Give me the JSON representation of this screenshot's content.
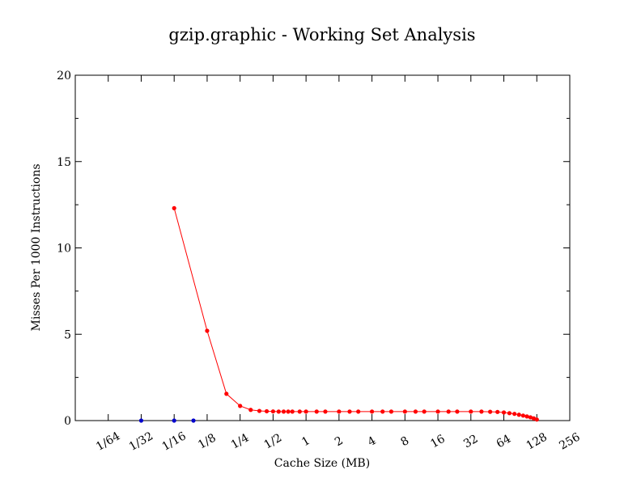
{
  "chart_data": {
    "type": "line",
    "title": "gzip.graphic - Working Set Analysis",
    "xlabel": "Cache Size (MB)",
    "ylabel": "Misses Per 1000 Instructions",
    "x_scale": "log2",
    "xlim": [
      0.0078125,
      256
    ],
    "ylim": [
      0,
      20
    ],
    "x_ticks": [
      {
        "value": 0.015625,
        "label": "1/64"
      },
      {
        "value": 0.03125,
        "label": "1/32"
      },
      {
        "value": 0.0625,
        "label": "1/16"
      },
      {
        "value": 0.125,
        "label": "1/8"
      },
      {
        "value": 0.25,
        "label": "1/4"
      },
      {
        "value": 0.5,
        "label": "1/2"
      },
      {
        "value": 1,
        "label": "1"
      },
      {
        "value": 2,
        "label": "2"
      },
      {
        "value": 4,
        "label": "4"
      },
      {
        "value": 8,
        "label": "8"
      },
      {
        "value": 16,
        "label": "16"
      },
      {
        "value": 32,
        "label": "32"
      },
      {
        "value": 64,
        "label": "64"
      },
      {
        "value": 128,
        "label": "128"
      },
      {
        "value": 256,
        "label": "256"
      }
    ],
    "y_ticks": [
      {
        "value": 0,
        "label": "0"
      },
      {
        "value": 5,
        "label": "5"
      },
      {
        "value": 10,
        "label": "10"
      },
      {
        "value": 15,
        "label": "15"
      },
      {
        "value": 20,
        "label": "20"
      }
    ],
    "grid": false,
    "series": [
      {
        "color": "#ff0000",
        "line": true,
        "x": [
          0.0625,
          0.125,
          0.1875,
          0.25,
          0.3125,
          0.375,
          0.4375,
          0.5,
          0.5625,
          0.625,
          0.6875,
          0.75,
          0.875,
          1,
          1.25,
          1.5,
          2,
          2.5,
          3,
          4,
          5,
          6,
          8,
          10,
          12,
          16,
          20,
          24,
          32,
          40,
          48,
          56,
          64,
          72,
          80,
          88,
          96,
          104,
          112,
          120,
          128
        ],
        "y": [
          12.3,
          5.2,
          1.55,
          0.85,
          0.62,
          0.56,
          0.54,
          0.53,
          0.52,
          0.52,
          0.52,
          0.52,
          0.52,
          0.52,
          0.52,
          0.52,
          0.52,
          0.52,
          0.52,
          0.52,
          0.52,
          0.52,
          0.52,
          0.52,
          0.52,
          0.52,
          0.52,
          0.52,
          0.52,
          0.52,
          0.51,
          0.5,
          0.47,
          0.43,
          0.39,
          0.34,
          0.29,
          0.24,
          0.19,
          0.13,
          0.06
        ]
      },
      {
        "color": "#0000cc",
        "line": false,
        "x": [
          0.03125,
          0.0625,
          0.09375
        ],
        "y": [
          0,
          0,
          0
        ]
      }
    ]
  }
}
